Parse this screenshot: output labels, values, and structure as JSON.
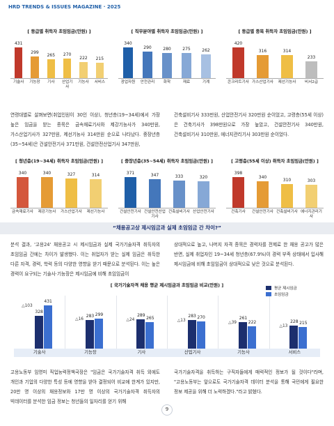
{
  "header": {
    "title": "HRD TRENDS & ISSUES MAGAZINE · 2025"
  },
  "chart_data": [
    {
      "type": "bar",
      "title": "[ 등급별 취득자 초임임금(만원) ]",
      "categories": [
        "기술사",
        "기능장",
        "기사",
        "산업기사",
        "기능사",
        "서비스"
      ],
      "values": [
        431,
        299,
        265,
        270,
        222,
        215
      ],
      "colors": [
        "#c0392b",
        "#e59b35",
        "#efbe45",
        "#efbe45",
        "#f2cf72",
        "#f2cf72"
      ]
    },
    {
      "type": "bar",
      "title": "[ 직무분야별 취득자 초임임금(만원) ]",
      "categories": [
        "광업자원",
        "안전관리",
        "화학",
        "재료",
        "기계"
      ],
      "values": [
        340,
        290,
        280,
        275,
        262
      ],
      "colors": [
        "#1f5fa8",
        "#4477bb",
        "#6891c9",
        "#86a8d6",
        "#a7c0e2"
      ]
    },
    {
      "type": "bar",
      "title": "[ 등급별 종목 취득자 초임임금(만원) ]",
      "categories": [
        "콘크리트기사",
        "가스산업기사",
        "제선기능사",
        "비서2급"
      ],
      "values": [
        420,
        316,
        314,
        233
      ],
      "colors": [
        "#c0392b",
        "#e59b35",
        "#efbe45",
        "#bdbdbd"
      ]
    },
    {
      "type": "bar",
      "title": "[ 청년층(19~34세) 취득자 초임임금(만원) ]",
      "categories": [
        "금속재료기사",
        "제강기능사",
        "가스산업기사",
        "제선기능사"
      ],
      "values": [
        340,
        340,
        327,
        314
      ],
      "colors": [
        "#d4573c",
        "#e59b35",
        "#efbe45",
        "#f2cf72"
      ]
    },
    {
      "type": "bar",
      "title": "[ 중장년층(35~54세) 취득자 초임임금(만원) ]",
      "categories": [
        "건설안전기사",
        "건설안전산업기사",
        "건축설비기사",
        "산업안전기사"
      ],
      "values": [
        371,
        347,
        333,
        320
      ],
      "colors": [
        "#1f5fa8",
        "#4477bb",
        "#6891c9",
        "#86a8d6"
      ]
    },
    {
      "type": "bar",
      "title": "[ 고령층(55세 이상) 취득자 초임임금(만원) ]",
      "categories": [
        "건축기사",
        "건설안전기사",
        "건축설비기사",
        "에너지관리기사"
      ],
      "values": [
        398,
        340,
        310,
        303
      ],
      "colors": [
        "#c0392b",
        "#e59b35",
        "#efbe45",
        "#f2cf72"
      ]
    },
    {
      "type": "grouped_bar",
      "title": "[ 국가기술자격 채용 평균 제시임금과 초임임금 비교(만원) ]",
      "categories": [
        "기술사",
        "기능장",
        "기사",
        "산업기사",
        "기능사",
        "서비스"
      ],
      "series": [
        {
          "name": "평균 제시임금",
          "color": "#1c2f6e",
          "values": [
            328,
            283,
            289,
            283,
            261,
            228
          ]
        },
        {
          "name": "초임임금",
          "color": "#3b6fd0",
          "values": [
            431,
            299,
            265,
            270,
            222,
            215
          ]
        }
      ],
      "annotations": [
        "△103",
        "△16",
        "△24",
        "△13",
        "△39",
        "△13"
      ]
    }
  ],
  "paragraphs": [
    [
      "연령대별로 살펴보면(취업인원이 30인 이상), 청년층(19~34세)에서 가장 높은 임금을 받는 종목은 금속재료기사와 제강기능사가 340만원, 가스산업기사가 327만원, 제선기능사 314만원 순으로 나타났다. 중장년층(35~54세)은 건설안전기사 371만원, 건설안전산업기사 347만원,",
      "건축설비기사 333만원, 산업안전기사 320만원 순이었고, 고령층(55세 이상)은 건축기사가 398만원으로 가장 높았고, 건설안전기사 340만원, 건축설비기사 310만원, 에너지관리기사 303만원 순이었다."
    ],
    [
      "분석 결과, '고용24' 채용공고 시 제시임금과 실제 국가기술자격 취득자의 초임임금 간에는 차이가 발생했다. 이는 취업자가 받는 실제 임금은 취득한 다른 자격, 경력, 학력 등의 다양한 영향을 받기 때문으로 분석된다. 이는 높은 경력이 요구되는 기술사·기능장은 제시임금에 비해 초임임금이",
      "상대적으로 높고, 나머지 자격 종목은 경력자를 전제로 한 채용 공고가 많은 반면, 실제 취업자인 19~34세 청년층(67.9%)이 경력 부족 상태에서 입사해 제시임금에 비해 초임임금이 상대적으로 낮은 것으로 분석된다."
    ],
    [
      "고용노동부 임영미 직업능력정책국장은 \"임금은 국가기술자격 취득 외에도 개인과 기업의 다양한 특성 등에 영향을 받아 결정되어 비교에 한계가 있지만, 20만 명 이상의 채용정보와 17만 명 이상의 국가기술자격 취득자의 빅데이터를 분석한 임금 정보는 청년들의 일자리를 얻기 위해",
      "국가기술자격을 취득하는 구직자들에게 매력적인 정보가 될 것이다\"라며, \"고용노동부는 앞으로도 국가기술자격 데이터 분석을 통해 국민에게 필요한 정보 제공을 위해 더 노력하겠다.\"라고 밝혔다."
    ]
  ],
  "banner": "“채용공고상 제시임금과 실제 초임임금 간 차이?”",
  "page_number": 9
}
